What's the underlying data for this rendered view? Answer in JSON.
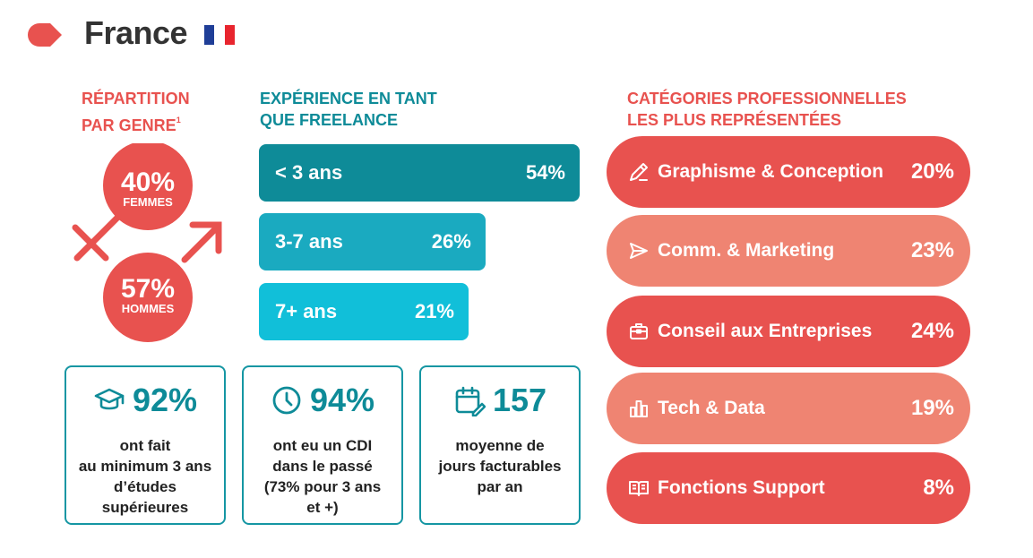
{
  "header": {
    "title": "France",
    "flag_colors": [
      "#1f3e97",
      "#ffffff",
      "#e8252e"
    ]
  },
  "colors": {
    "red": "#e8524f",
    "salmon": "#ef8472",
    "teal_dark": "#0e8b98",
    "teal_mid": "#1aaac0",
    "teal_light": "#11bfd9"
  },
  "gender": {
    "title_line1": "RÉPARTITION",
    "title_line2": "PAR GENRE",
    "footnote": "1",
    "women_pct": "40%",
    "women_label": "FEMMES",
    "men_pct": "57%",
    "men_label": "HOMMES"
  },
  "experience": {
    "title_line1": "EXPÉRIENCE EN TANT",
    "title_line2": "QUE FREELANCE"
  },
  "categories": {
    "title_line1": "CATÉGORIES PROFESSIONNELLES",
    "title_line2": "LES PLUS REPRÉSENTÉES",
    "items": [
      {
        "label": "Graphisme & Conception",
        "value": "20%",
        "icon": "pen-ruler-icon"
      },
      {
        "label": "Comm. & Marketing",
        "value": "23%",
        "icon": "send-icon"
      },
      {
        "label": "Conseil aux Entreprises",
        "value": "24%",
        "icon": "briefcase-icon"
      },
      {
        "label": "Tech & Data",
        "value": "19%",
        "icon": "bar-chart-icon"
      },
      {
        "label": "Fonctions Support",
        "value": "8%",
        "icon": "book-icon"
      }
    ]
  },
  "stats": [
    {
      "value": "92%",
      "description": "ont fait\nau minimum 3 ans\nd’études\nsupérieures",
      "icon": "graduation-cap-icon"
    },
    {
      "value": "94%",
      "description": "ont eu un CDI\ndans le passé\n(73% pour 3 ans\net +)",
      "icon": "clock-icon"
    },
    {
      "value": "157",
      "description": "moyenne de\njours facturables\npar an",
      "icon": "calendar-icon"
    }
  ],
  "chart_data": {
    "type": "bar",
    "orientation": "horizontal",
    "categories": [
      "< 3 ans",
      "3-7 ans",
      "7+ ans"
    ],
    "values": [
      54,
      26,
      21
    ],
    "value_labels": [
      "54%",
      "26%",
      "21%"
    ],
    "colors": [
      "#0e8b98",
      "#1aaac0",
      "#11bfd9"
    ]
  }
}
